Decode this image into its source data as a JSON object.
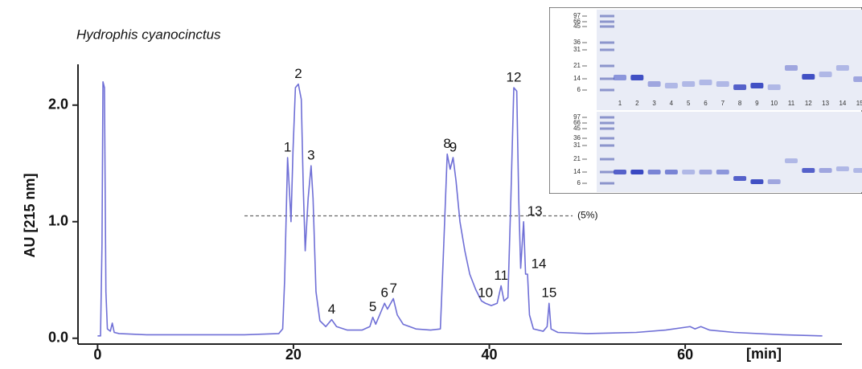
{
  "chart_data": {
    "type": "line",
    "title": "Hydrophis cyanocinctus",
    "ylabel": "AU [215 nm]",
    "xlabel": "[min]",
    "xlim": [
      -2,
      76
    ],
    "ylim": [
      -0.05,
      2.35
    ],
    "xticks": [
      0,
      20,
      40,
      60
    ],
    "yticks": [
      {
        "value": 0,
        "label": "0.0"
      },
      {
        "value": 1,
        "label": "1.0"
      },
      {
        "value": 2,
        "label": "2.0"
      }
    ],
    "color": "#6f6fd6",
    "x": [
      0,
      0.3,
      0.45,
      0.55,
      0.7,
      0.85,
      1.0,
      1.3,
      1.5,
      1.7,
      2.2,
      5,
      10,
      15,
      18.5,
      18.9,
      19.1,
      19.4,
      19.6,
      19.75,
      19.95,
      20.2,
      20.5,
      20.8,
      21.0,
      21.2,
      21.5,
      21.8,
      22.0,
      22.3,
      22.7,
      23.3,
      23.9,
      24.4,
      25.5,
      27.0,
      27.8,
      28.1,
      28.4,
      28.8,
      29.3,
      29.6,
      30.2,
      30.6,
      31.2,
      32.5,
      34.0,
      35.0,
      35.3,
      35.7,
      36.0,
      36.3,
      36.6,
      37.0,
      37.5,
      38.0,
      38.6,
      39.2,
      39.6,
      40.2,
      40.8,
      41.2,
      41.5,
      41.9,
      42.2,
      42.5,
      42.8,
      43.0,
      43.2,
      43.5,
      43.7,
      43.9,
      44.1,
      44.5,
      45.5,
      45.9,
      46.1,
      46.3,
      47,
      50,
      55,
      58,
      60.5,
      61,
      61.6,
      62.5,
      65,
      70,
      74
    ],
    "values": [
      0.02,
      0.02,
      0.8,
      2.2,
      2.15,
      0.4,
      0.08,
      0.06,
      0.13,
      0.05,
      0.04,
      0.03,
      0.03,
      0.03,
      0.04,
      0.08,
      0.5,
      1.55,
      1.25,
      1.0,
      1.6,
      2.15,
      2.18,
      2.05,
      1.3,
      0.75,
      1.2,
      1.48,
      1.2,
      0.4,
      0.15,
      0.1,
      0.16,
      0.1,
      0.07,
      0.07,
      0.1,
      0.18,
      0.12,
      0.2,
      0.3,
      0.25,
      0.34,
      0.2,
      0.12,
      0.08,
      0.07,
      0.08,
      0.7,
      1.58,
      1.45,
      1.55,
      1.35,
      1.0,
      0.75,
      0.55,
      0.42,
      0.32,
      0.3,
      0.28,
      0.3,
      0.45,
      0.32,
      0.35,
      1.2,
      2.15,
      2.12,
      1.2,
      0.6,
      1.0,
      0.55,
      0.55,
      0.2,
      0.08,
      0.06,
      0.1,
      0.3,
      0.08,
      0.05,
      0.04,
      0.05,
      0.07,
      0.1,
      0.08,
      0.1,
      0.07,
      0.05,
      0.03,
      0.02
    ],
    "annotations": [
      {
        "text": "1",
        "x": 19.4
      },
      {
        "text": "2",
        "x": 20.5
      },
      {
        "text": "3",
        "x": 21.8
      },
      {
        "text": "4",
        "x": 23.9
      },
      {
        "text": "5",
        "x": 28.1
      },
      {
        "text": "6",
        "x": 29.3
      },
      {
        "text": "7",
        "x": 30.2
      },
      {
        "text": "8",
        "x": 35.7
      },
      {
        "text": "9",
        "x": 36.3
      },
      {
        "text": "10",
        "x": 39.6
      },
      {
        "text": "11",
        "x": 41.2
      },
      {
        "text": "12",
        "x": 42.5
      },
      {
        "text": "13",
        "x": 43.5
      },
      {
        "text": "14",
        "x": 43.9
      },
      {
        "text": "15",
        "x": 46.1
      }
    ],
    "threshold": {
      "value": 1.05,
      "label": "(5%)"
    },
    "inset": {
      "mw_labels": [
        "97",
        "66",
        "45",
        "36",
        "31",
        "21",
        "14",
        "6"
      ],
      "lanes": [
        "1",
        "2",
        "3",
        "4",
        "5",
        "6",
        "7",
        "8",
        "9",
        "10",
        "11",
        "12",
        "13",
        "14",
        "15"
      ]
    }
  }
}
